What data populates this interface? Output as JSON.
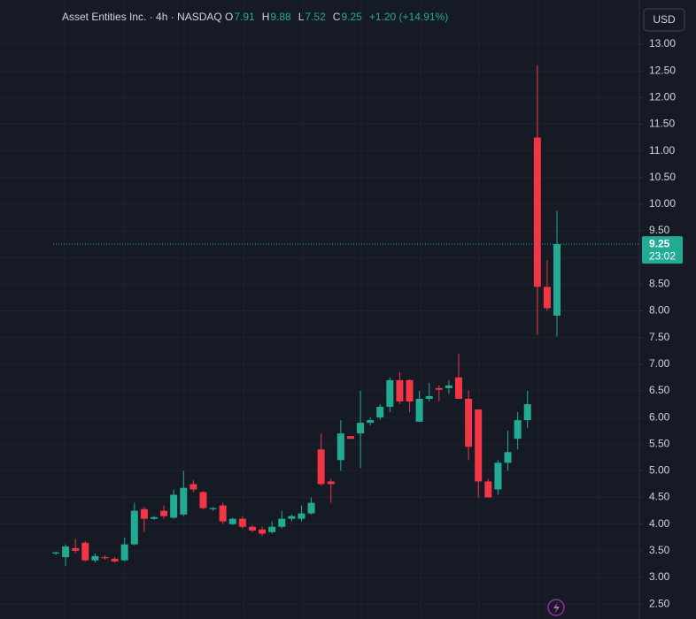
{
  "chart_data": {
    "type": "candlestick",
    "title": "Asset Entities Inc. · 4h · NASDAQ",
    "ohlc_legend": [
      {
        "label": "O",
        "value": 7.91
      },
      {
        "label": "H",
        "value": 9.88
      },
      {
        "label": "L",
        "value": 7.52
      },
      {
        "label": "C",
        "value": 9.25
      }
    ],
    "change": "+1.20 (+14.91%)",
    "currency": "USD",
    "last_price": 9.25,
    "countdown": "23:02",
    "up_color": "#22ab94",
    "down_color": "#f23645",
    "grid": true,
    "ylim": [
      2.22,
      13.83
    ],
    "yticks": [
      {
        "value": 2.5,
        "label": "2.50"
      },
      {
        "value": 3,
        "label": "3.00"
      },
      {
        "value": 3.5,
        "label": "3.50"
      },
      {
        "value": 4,
        "label": "4.00"
      },
      {
        "value": 4.5,
        "label": "4.50"
      },
      {
        "value": 5,
        "label": "5.00"
      },
      {
        "value": 5.5,
        "label": "5.50"
      },
      {
        "value": 6,
        "label": "6.00"
      },
      {
        "value": 6.5,
        "label": "6.50"
      },
      {
        "value": 7,
        "label": "7.00"
      },
      {
        "value": 7.5,
        "label": "7.50"
      },
      {
        "value": 8,
        "label": "8.00"
      },
      {
        "value": 8.5,
        "label": "8.50"
      },
      {
        "value": 9,
        "label": "9.00"
      },
      {
        "value": 9.5,
        "label": "9.50"
      },
      {
        "value": 10,
        "label": "10.00"
      },
      {
        "value": 10.5,
        "label": "10.50"
      },
      {
        "value": 11,
        "label": "11.00"
      },
      {
        "value": 11.5,
        "label": "11.50"
      },
      {
        "value": 12,
        "label": "12.00"
      },
      {
        "value": 12.5,
        "label": "12.50"
      },
      {
        "value": 13,
        "label": "13.00"
      }
    ],
    "open": [
      3.45,
      3.38,
      3.55,
      3.65,
      3.32,
      3.38,
      3.35,
      3.32,
      3.62,
      4.28,
      4.1,
      4.25,
      4.12,
      4.18,
      4.75,
      4.6,
      4.28,
      4.35,
      4.0,
      4.1,
      3.95,
      3.9,
      3.85,
      3.95,
      4.1,
      4.1,
      4.2,
      5.4,
      4.8,
      5.2,
      5.65,
      5.7,
      5.9,
      6.0,
      6.2,
      6.7,
      6.7,
      5.92,
      6.35,
      6.55,
      6.55,
      6.75,
      6.35,
      6.15,
      4.8,
      4.65,
      5.15,
      5.6,
      5.95,
      11.25,
      8.45,
      7.91
    ],
    "high": [
      3.48,
      3.62,
      3.72,
      3.68,
      3.45,
      3.42,
      3.38,
      3.75,
      4.4,
      4.32,
      4.15,
      4.35,
      4.65,
      5.0,
      4.82,
      4.62,
      4.32,
      4.4,
      4.12,
      4.15,
      3.98,
      3.95,
      4.05,
      4.25,
      4.18,
      4.35,
      4.5,
      5.7,
      4.85,
      5.95,
      5.65,
      6.5,
      6.0,
      6.25,
      6.75,
      6.85,
      6.72,
      6.5,
      6.65,
      6.6,
      6.7,
      7.2,
      6.5,
      6.15,
      4.85,
      5.2,
      5.75,
      6.1,
      6.5,
      12.6,
      8.95,
      9.88
    ],
    "low": [
      3.42,
      3.22,
      3.45,
      3.3,
      3.28,
      3.33,
      3.28,
      3.3,
      3.6,
      3.85,
      4.08,
      4.1,
      4.1,
      4.15,
      4.6,
      4.28,
      4.25,
      4.0,
      3.98,
      3.92,
      3.85,
      3.78,
      3.82,
      3.92,
      4.05,
      4.05,
      4.18,
      4.72,
      4.4,
      5.0,
      5.6,
      5.05,
      5.85,
      5.95,
      6.1,
      6.25,
      6.1,
      5.92,
      6.3,
      6.3,
      6.45,
      6.35,
      5.2,
      4.5,
      4.5,
      4.55,
      5.0,
      5.4,
      5.8,
      7.55,
      8.0,
      7.52
    ],
    "close": [
      3.47,
      3.58,
      3.5,
      3.32,
      3.4,
      3.36,
      3.3,
      3.62,
      4.25,
      4.1,
      4.13,
      4.15,
      4.55,
      4.68,
      4.65,
      4.3,
      4.3,
      4.05,
      4.1,
      3.95,
      3.88,
      3.82,
      3.95,
      4.1,
      4.15,
      4.2,
      4.4,
      4.75,
      4.75,
      5.7,
      5.6,
      5.9,
      5.95,
      6.2,
      6.7,
      6.3,
      6.3,
      6.35,
      6.4,
      6.52,
      6.6,
      6.35,
      5.45,
      4.8,
      4.5,
      5.15,
      5.35,
      5.95,
      6.25,
      8.45,
      8.05,
      9.25
    ]
  }
}
